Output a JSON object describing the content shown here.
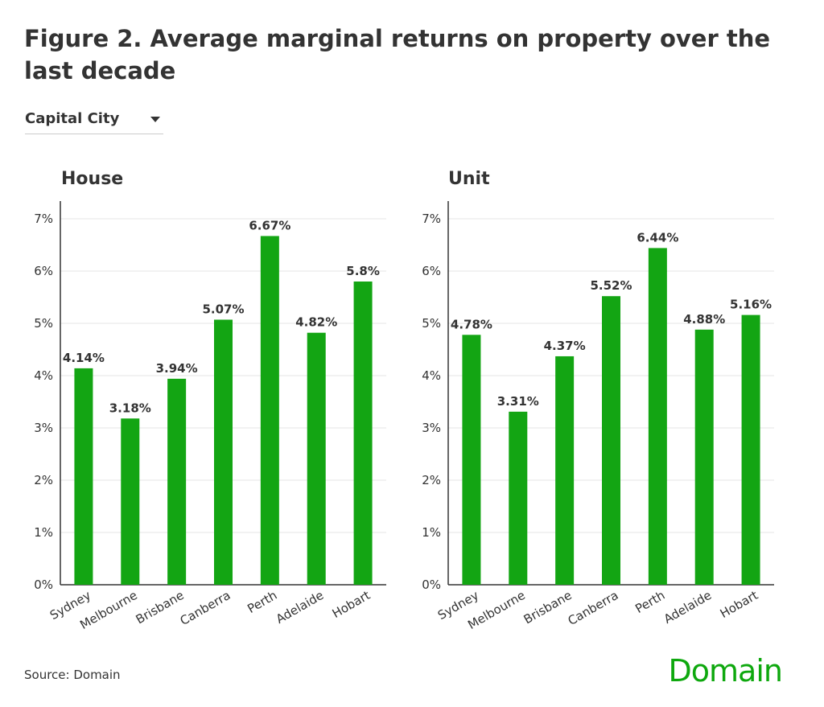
{
  "title": "Figure 2. Average marginal returns on property over the last decade",
  "dropdown": {
    "selected": "Capital City"
  },
  "source": "Source: Domain",
  "logo": "Domain",
  "colors": {
    "bar": "#13a513",
    "grid": "#e6e6e6",
    "axis": "#333333"
  },
  "chart_data": [
    {
      "type": "bar",
      "title": "House",
      "categories": [
        "Sydney",
        "Melbourne",
        "Brisbane",
        "Canberra",
        "Perth",
        "Adelaide",
        "Hobart"
      ],
      "values": [
        4.14,
        3.18,
        3.94,
        5.07,
        6.67,
        4.82,
        5.8
      ],
      "data_labels": [
        "4.14%",
        "3.18%",
        "3.94%",
        "5.07%",
        "6.67%",
        "4.82%",
        "5.8%"
      ],
      "yticks": [
        "0%",
        "1%",
        "2%",
        "3%",
        "4%",
        "5%",
        "6%",
        "7%"
      ],
      "ylim": [
        0,
        7
      ],
      "grid": true
    },
    {
      "type": "bar",
      "title": "Unit",
      "categories": [
        "Sydney",
        "Melbourne",
        "Brisbane",
        "Canberra",
        "Perth",
        "Adelaide",
        "Hobart"
      ],
      "values": [
        4.78,
        3.31,
        4.37,
        5.52,
        6.44,
        4.88,
        5.16
      ],
      "data_labels": [
        "4.78%",
        "3.31%",
        "4.37%",
        "5.52%",
        "6.44%",
        "4.88%",
        "5.16%"
      ],
      "yticks": [
        "0%",
        "1%",
        "2%",
        "3%",
        "4%",
        "5%",
        "6%",
        "7%"
      ],
      "ylim": [
        0,
        7
      ],
      "grid": true
    }
  ]
}
